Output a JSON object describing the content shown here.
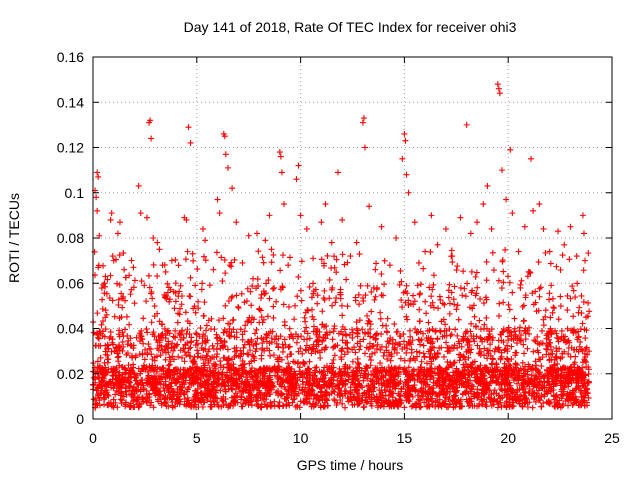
{
  "chart_data": {
    "type": "scatter",
    "title": "Day 141 of 2018, Rate Of TEC Index for receiver ohi3",
    "xlabel": "GPS time / hours",
    "ylabel": "ROTI / TECUs",
    "xlim": [
      0,
      25
    ],
    "ylim": [
      0,
      0.16
    ],
    "xticks": [
      0,
      5,
      10,
      15,
      20,
      25
    ],
    "xtick_labels": [
      "0",
      "5",
      "10",
      "15",
      "20",
      "25"
    ],
    "yticks": [
      0,
      0.02,
      0.04,
      0.06,
      0.08,
      0.1,
      0.12,
      0.14,
      0.16
    ],
    "ytick_labels": [
      "0",
      "0.02",
      "0.04",
      "0.06",
      "0.08",
      "0.1",
      "0.12",
      "0.14",
      "0.16"
    ],
    "grid": true,
    "marker": "plus",
    "color": "#ff0000",
    "x_range_of_data": [
      0,
      23.9
    ],
    "series": [
      {
        "name": "ROTI",
        "points": [
          [
            0.1,
            0.101
          ],
          [
            0.15,
            0.098
          ],
          [
            0.2,
            0.109
          ],
          [
            0.25,
            0.107
          ],
          [
            0.2,
            0.092
          ],
          [
            0.3,
            0.081
          ],
          [
            0.25,
            0.067
          ],
          [
            0.6,
            0.063
          ],
          [
            0.9,
            0.091
          ],
          [
            0.85,
            0.088
          ],
          [
            1.0,
            0.07
          ],
          [
            1.2,
            0.082
          ],
          [
            1.3,
            0.087
          ],
          [
            1.5,
            0.066
          ],
          [
            2.2,
            0.103
          ],
          [
            2.3,
            0.091
          ],
          [
            2.6,
            0.089
          ],
          [
            2.7,
            0.131
          ],
          [
            2.75,
            0.132
          ],
          [
            2.8,
            0.124
          ],
          [
            2.9,
            0.08
          ],
          [
            3.1,
            0.078
          ],
          [
            3.2,
            0.075
          ],
          [
            3.5,
            0.065
          ],
          [
            3.8,
            0.07
          ],
          [
            4.4,
            0.089
          ],
          [
            4.5,
            0.088
          ],
          [
            4.6,
            0.129
          ],
          [
            4.7,
            0.122
          ],
          [
            4.8,
            0.073
          ],
          [
            5.3,
            0.084
          ],
          [
            5.4,
            0.079
          ],
          [
            5.8,
            0.066
          ],
          [
            6.0,
            0.097
          ],
          [
            6.1,
            0.091
          ],
          [
            6.3,
            0.126
          ],
          [
            6.35,
            0.125
          ],
          [
            6.4,
            0.117
          ],
          [
            6.5,
            0.111
          ],
          [
            6.7,
            0.102
          ],
          [
            6.9,
            0.087
          ],
          [
            7.2,
            0.069
          ],
          [
            7.5,
            0.081
          ],
          [
            7.9,
            0.082
          ],
          [
            8.3,
            0.079
          ],
          [
            8.5,
            0.09
          ],
          [
            8.6,
            0.075
          ],
          [
            9.0,
            0.118
          ],
          [
            9.05,
            0.116
          ],
          [
            9.1,
            0.109
          ],
          [
            9.2,
            0.095
          ],
          [
            9.4,
            0.068
          ],
          [
            9.8,
            0.106
          ],
          [
            9.9,
            0.112
          ],
          [
            10.0,
            0.09
          ],
          [
            10.3,
            0.084
          ],
          [
            10.6,
            0.071
          ],
          [
            11.0,
            0.087
          ],
          [
            11.2,
            0.095
          ],
          [
            11.5,
            0.078
          ],
          [
            11.8,
            0.109
          ],
          [
            12.0,
            0.088
          ],
          [
            12.4,
            0.072
          ],
          [
            12.7,
            0.078
          ],
          [
            13.0,
            0.131
          ],
          [
            13.05,
            0.133
          ],
          [
            13.1,
            0.12
          ],
          [
            13.3,
            0.094
          ],
          [
            13.6,
            0.066
          ],
          [
            13.9,
            0.085
          ],
          [
            14.3,
            0.068
          ],
          [
            14.6,
            0.08
          ],
          [
            14.9,
            0.115
          ],
          [
            15.0,
            0.126
          ],
          [
            15.05,
            0.123
          ],
          [
            15.1,
            0.108
          ],
          [
            15.2,
            0.1
          ],
          [
            15.5,
            0.087
          ],
          [
            15.7,
            0.069
          ],
          [
            16.0,
            0.074
          ],
          [
            16.3,
            0.09
          ],
          [
            16.6,
            0.077
          ],
          [
            17.0,
            0.084
          ],
          [
            17.3,
            0.072
          ],
          [
            17.7,
            0.089
          ],
          [
            18.0,
            0.13
          ],
          [
            18.2,
            0.082
          ],
          [
            18.5,
            0.087
          ],
          [
            18.8,
            0.095
          ],
          [
            19.0,
            0.103
          ],
          [
            19.2,
            0.084
          ],
          [
            19.5,
            0.148
          ],
          [
            19.55,
            0.146
          ],
          [
            19.6,
            0.144
          ],
          [
            19.7,
            0.11
          ],
          [
            19.9,
            0.097
          ],
          [
            20.1,
            0.119
          ],
          [
            20.2,
            0.091
          ],
          [
            20.5,
            0.074
          ],
          [
            20.8,
            0.085
          ],
          [
            21.1,
            0.115
          ],
          [
            21.2,
            0.092
          ],
          [
            21.5,
            0.095
          ],
          [
            21.7,
            0.084
          ],
          [
            22.0,
            0.074
          ],
          [
            22.4,
            0.083
          ],
          [
            22.7,
            0.077
          ],
          [
            23.0,
            0.085
          ],
          [
            23.3,
            0.072
          ],
          [
            23.6,
            0.09
          ],
          [
            23.65,
            0.082
          ],
          [
            23.7,
            0.07
          ],
          [
            23.75,
            0.045
          ]
        ]
      }
    ]
  }
}
